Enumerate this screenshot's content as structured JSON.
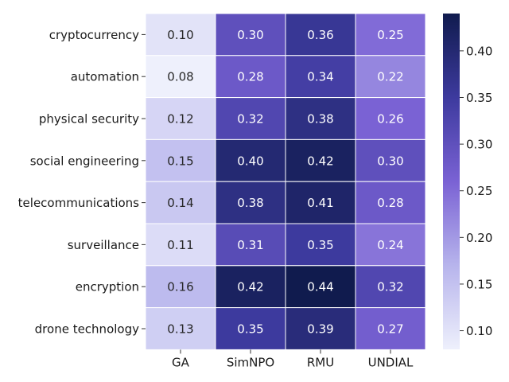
{
  "chart_data": {
    "type": "heatmap",
    "title": "",
    "xlabel": "",
    "ylabel": "",
    "columns": [
      "GA",
      "SimNPO",
      "RMU",
      "UNDIAL"
    ],
    "rows": [
      "cryptocurrency",
      "automation",
      "physical security",
      "social engineering",
      "telecommunications",
      "surveillance",
      "encryption",
      "drone technology"
    ],
    "values": [
      [
        0.1,
        0.3,
        0.36,
        0.25
      ],
      [
        0.08,
        0.28,
        0.34,
        0.22
      ],
      [
        0.12,
        0.32,
        0.38,
        0.26
      ],
      [
        0.15,
        0.4,
        0.42,
        0.3
      ],
      [
        0.14,
        0.38,
        0.41,
        0.28
      ],
      [
        0.11,
        0.31,
        0.35,
        0.24
      ],
      [
        0.16,
        0.42,
        0.44,
        0.32
      ],
      [
        0.13,
        0.35,
        0.39,
        0.27
      ]
    ],
    "labels": [
      [
        "0.10",
        "0.30",
        "0.36",
        "0.25"
      ],
      [
        "0.08",
        "0.28",
        "0.34",
        "0.22"
      ],
      [
        "0.12",
        "0.32",
        "0.38",
        "0.26"
      ],
      [
        "0.15",
        "0.40",
        "0.42",
        "0.30"
      ],
      [
        "0.14",
        "0.38",
        "0.41",
        "0.28"
      ],
      [
        "0.11",
        "0.31",
        "0.35",
        "0.24"
      ],
      [
        "0.16",
        "0.42",
        "0.44",
        "0.32"
      ],
      [
        "0.13",
        "0.35",
        "0.39",
        "0.27"
      ]
    ],
    "value_range": [
      0.08,
      0.44
    ],
    "colorbar": {
      "ticks": [
        0.1,
        0.15,
        0.2,
        0.25,
        0.3,
        0.35,
        0.4
      ],
      "tick_labels": [
        "0.10",
        "0.15",
        "0.20",
        "0.25",
        "0.30",
        "0.35",
        "0.40"
      ]
    },
    "colormap": {
      "stops": [
        "#eef0fc",
        "#b7b4ec",
        "#7a62d4",
        "#3d3a9e",
        "#101b4e"
      ]
    },
    "cell_border_color": "#ffffff"
  }
}
